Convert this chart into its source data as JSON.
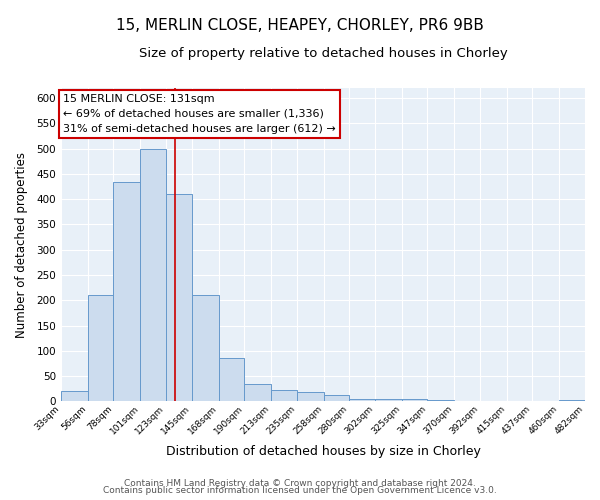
{
  "title_line1": "15, MERLIN CLOSE, HEAPEY, CHORLEY, PR6 9BB",
  "title_line2": "Size of property relative to detached houses in Chorley",
  "xlabel": "Distribution of detached houses by size in Chorley",
  "ylabel": "Number of detached properties",
  "footnote1": "Contains HM Land Registry data © Crown copyright and database right 2024.",
  "footnote2": "Contains public sector information licensed under the Open Government Licence v3.0.",
  "bin_edges": [
    33,
    56,
    78,
    101,
    123,
    145,
    168,
    190,
    213,
    235,
    258,
    280,
    302,
    325,
    347,
    370,
    392,
    415,
    437,
    460,
    482
  ],
  "bar_heights": [
    20,
    210,
    435,
    500,
    410,
    210,
    85,
    35,
    22,
    18,
    13,
    5,
    5,
    5,
    3,
    0,
    0,
    1,
    0,
    2
  ],
  "bar_color": "#ccdcee",
  "bar_edgecolor": "#6699cc",
  "vline_x": 131,
  "vline_color": "#cc0000",
  "annotation_title": "15 MERLIN CLOSE: 131sqm",
  "annotation_line1": "← 69% of detached houses are smaller (1,336)",
  "annotation_line2": "31% of semi-detached houses are larger (612) →",
  "annotation_box_edgecolor": "#cc0000",
  "annotation_fontsize": 8,
  "ylim": [
    0,
    620
  ],
  "yticks": [
    0,
    50,
    100,
    150,
    200,
    250,
    300,
    350,
    400,
    450,
    500,
    550,
    600
  ],
  "fig_background": "#ffffff",
  "axes_background": "#e8f0f8",
  "grid_color": "#ffffff",
  "title1_fontsize": 11,
  "title2_fontsize": 9.5,
  "xlabel_fontsize": 9,
  "ylabel_fontsize": 8.5,
  "footnote_fontsize": 6.5
}
